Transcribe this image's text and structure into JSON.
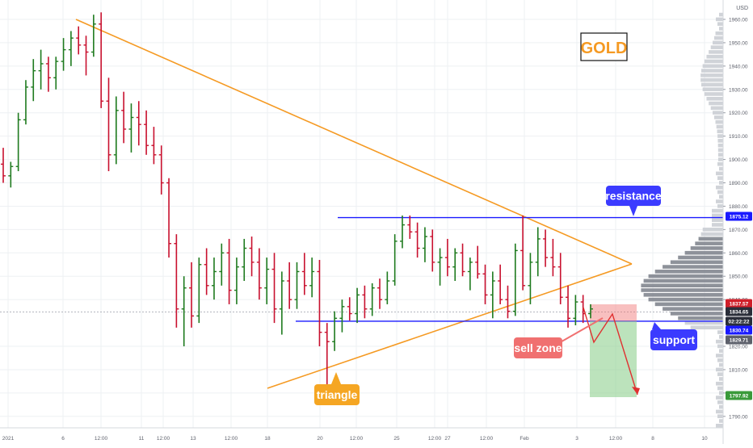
{
  "chart_data": {
    "type": "ohlc",
    "title": "GOLD",
    "currency": "USD",
    "y_range": [
      1785,
      1968
    ],
    "y_ticks": [
      1960,
      1950,
      1940,
      1930,
      1920,
      1910,
      1900,
      1890,
      1880,
      1870,
      1860,
      1850,
      1840,
      1820,
      1810,
      1800,
      1790
    ],
    "x_ticks": [
      "2021",
      "6",
      "12:00",
      "11",
      "12:00",
      "13",
      "12:00",
      "18",
      "20",
      "12:00",
      "25",
      "12:00",
      "27",
      "12:00",
      "Feb",
      "3",
      "12:00",
      "8",
      "10"
    ],
    "grid": true,
    "price_labels": [
      {
        "value": "1875.12",
        "color": "#1a1aff"
      },
      {
        "value": "1837.57",
        "color": "#d0202a"
      },
      {
        "value": "1834.65",
        "color": "#2a2e39"
      },
      {
        "value": "02:22:22",
        "color": "#2a2e39"
      },
      {
        "value": "1830.74",
        "color": "#1a1aff"
      },
      {
        "value": "1829.71",
        "color": "#5d606b"
      },
      {
        "value": "1797.92",
        "color": "#3a9a3a"
      }
    ],
    "levels": {
      "resistance": 1875.12,
      "support": 1830.74,
      "current": 1834.65
    },
    "annotations": {
      "resistance": "resistance",
      "support": "support",
      "sell_zone": "sell zone",
      "triangle": "triangle"
    },
    "colors": {
      "up": "#1e7a1e",
      "down": "#c8102e",
      "triangle": "#f59a23",
      "level": "#1a1aff",
      "sell_zone": "#f07070",
      "target_zone": "#8fd08f"
    },
    "bars": [
      [
        1898,
        1905,
        1890,
        1893
      ],
      [
        1893,
        1899,
        1888,
        1897
      ],
      [
        1897,
        1920,
        1895,
        1917
      ],
      [
        1917,
        1934,
        1915,
        1931
      ],
      [
        1931,
        1943,
        1925,
        1938
      ],
      [
        1938,
        1947,
        1930,
        1941
      ],
      [
        1941,
        1944,
        1929,
        1935
      ],
      [
        1935,
        1944,
        1930,
        1942
      ],
      [
        1942,
        1952,
        1938,
        1947
      ],
      [
        1947,
        1955,
        1940,
        1952
      ],
      [
        1952,
        1957,
        1945,
        1949
      ],
      [
        1949,
        1953,
        1936,
        1946
      ],
      [
        1946,
        1962,
        1944,
        1958
      ],
      [
        1958,
        1963,
        1922,
        1925
      ],
      [
        1925,
        1935,
        1895,
        1902
      ],
      [
        1902,
        1927,
        1898,
        1921
      ],
      [
        1921,
        1929,
        1907,
        1913
      ],
      [
        1913,
        1924,
        1903,
        1918
      ],
      [
        1918,
        1925,
        1906,
        1915
      ],
      [
        1915,
        1921,
        1902,
        1906
      ],
      [
        1906,
        1914,
        1898,
        1902
      ],
      [
        1902,
        1906,
        1885,
        1890
      ],
      [
        1890,
        1892,
        1858,
        1864
      ],
      [
        1864,
        1868,
        1828,
        1836
      ],
      [
        1836,
        1850,
        1820,
        1845
      ],
      [
        1845,
        1856,
        1828,
        1833
      ],
      [
        1833,
        1858,
        1830,
        1855
      ],
      [
        1855,
        1862,
        1842,
        1846
      ],
      [
        1846,
        1858,
        1840,
        1852
      ],
      [
        1852,
        1864,
        1846,
        1860
      ],
      [
        1860,
        1866,
        1838,
        1844
      ],
      [
        1844,
        1858,
        1838,
        1854
      ],
      [
        1854,
        1866,
        1848,
        1862
      ],
      [
        1862,
        1867,
        1850,
        1856
      ],
      [
        1856,
        1862,
        1840,
        1845
      ],
      [
        1845,
        1858,
        1838,
        1853
      ],
      [
        1853,
        1860,
        1830,
        1836
      ],
      [
        1836,
        1852,
        1825,
        1848
      ],
      [
        1848,
        1856,
        1836,
        1840
      ],
      [
        1840,
        1856,
        1836,
        1852
      ],
      [
        1852,
        1860,
        1842,
        1846
      ],
      [
        1846,
        1858,
        1841,
        1852
      ],
      [
        1852,
        1857,
        1820,
        1826
      ],
      [
        1826,
        1830,
        1803,
        1822
      ],
      [
        1822,
        1835,
        1818,
        1832
      ],
      [
        1832,
        1840,
        1826,
        1837
      ],
      [
        1837,
        1841,
        1831,
        1834
      ],
      [
        1834,
        1845,
        1830,
        1842
      ],
      [
        1842,
        1846,
        1832,
        1836
      ],
      [
        1836,
        1847,
        1833,
        1845
      ],
      [
        1845,
        1849,
        1836,
        1840
      ],
      [
        1840,
        1852,
        1838,
        1848
      ],
      [
        1848,
        1868,
        1846,
        1865
      ],
      [
        1865,
        1876,
        1862,
        1872
      ],
      [
        1872,
        1876,
        1866,
        1869
      ],
      [
        1869,
        1873,
        1858,
        1862
      ],
      [
        1862,
        1871,
        1856,
        1867
      ],
      [
        1867,
        1870,
        1852,
        1856
      ],
      [
        1856,
        1862,
        1846,
        1858
      ],
      [
        1858,
        1866,
        1850,
        1854
      ],
      [
        1854,
        1862,
        1848,
        1860
      ],
      [
        1860,
        1864,
        1850,
        1852
      ],
      [
        1852,
        1858,
        1844,
        1856
      ],
      [
        1856,
        1863,
        1849,
        1851
      ],
      [
        1851,
        1855,
        1838,
        1842
      ],
      [
        1842,
        1852,
        1832,
        1848
      ],
      [
        1848,
        1855,
        1838,
        1840
      ],
      [
        1840,
        1846,
        1832,
        1835
      ],
      [
        1835,
        1864,
        1833,
        1861
      ],
      [
        1861,
        1876,
        1844,
        1846
      ],
      [
        1846,
        1860,
        1838,
        1856
      ],
      [
        1856,
        1871,
        1850,
        1866
      ],
      [
        1866,
        1870,
        1854,
        1858
      ],
      [
        1858,
        1866,
        1850,
        1854
      ],
      [
        1854,
        1860,
        1838,
        1841
      ],
      [
        1841,
        1846,
        1828,
        1832
      ],
      [
        1832,
        1842,
        1829,
        1839
      ],
      [
        1839,
        1842,
        1830,
        1834
      ],
      [
        1834,
        1838,
        1832,
        1836
      ]
    ]
  },
  "ui": {
    "currency_label": "USD"
  }
}
